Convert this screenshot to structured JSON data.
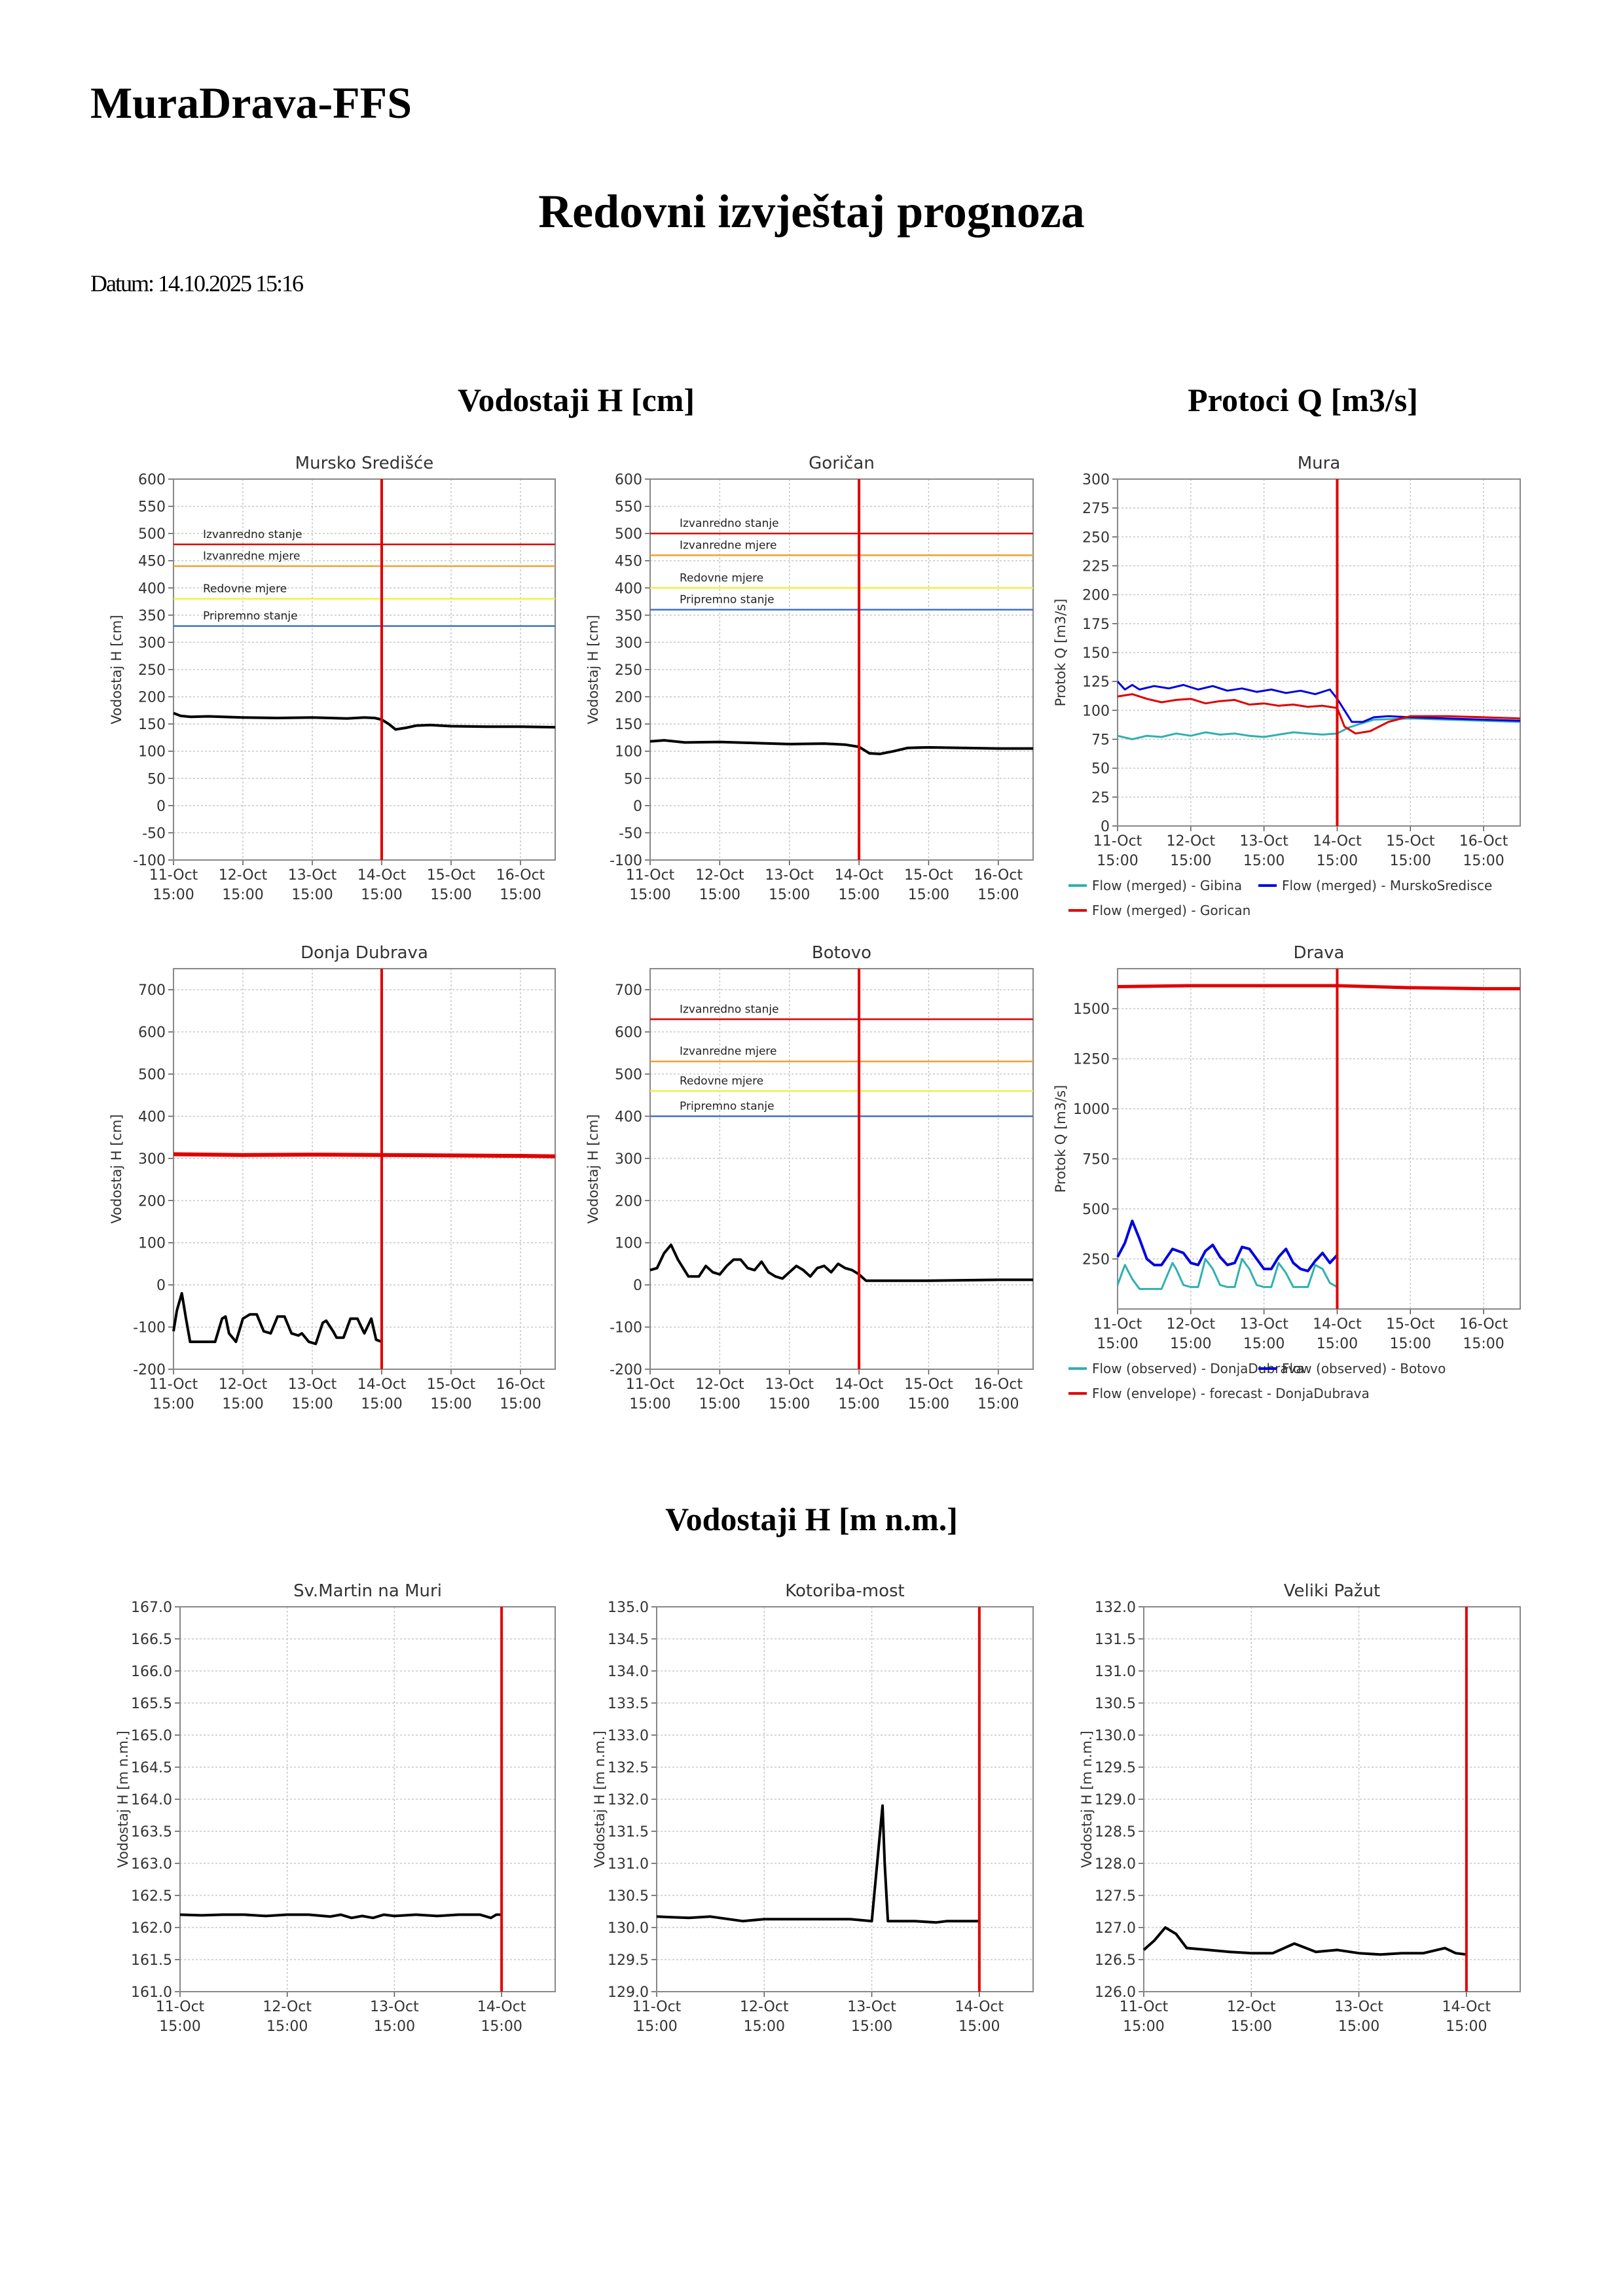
{
  "app_title": "MuraDrava-FFS",
  "report_title": "Redovni izvještaj prognoza",
  "report_date": "Datum: 14.10.2025 15:16",
  "section_titles": {
    "water_levels_cm": "Vodostaji H [cm]",
    "flows": "Protoci Q [m3/s]",
    "water_levels_mnm": "Vodostaji H [m n.m.]"
  },
  "colors": {
    "observed": "#000000",
    "now_line": "#e00000",
    "izvanredno_stanje": "#e00000",
    "izvanredne_mjere": "#f0a030",
    "redovne_mjere": "#f0f040",
    "pripremno_stanje": "#4070c0",
    "flow_teal": "#30b0b0",
    "flow_blue": "#0000e0",
    "flow_red": "#e00000"
  },
  "chart_data": [
    {
      "id": "mursko-sredisce",
      "type": "line",
      "title": "Mursko Središće",
      "ylabel": "Vodostaj H [cm]",
      "ylim": [
        -100,
        600
      ],
      "ytick_step": 50,
      "ytick_decimals": 0,
      "xlabels": [
        "11-Oct\n15:00",
        "12-Oct\n15:00",
        "13-Oct\n15:00",
        "14-Oct\n15:00",
        "15-Oct\n15:00",
        "16-Oct\n15:00"
      ],
      "xlim": [
        0,
        5.5
      ],
      "now": 3,
      "thresholds": [
        {
          "label": "Izvanredno stanje",
          "value": 480,
          "color": "#e00000"
        },
        {
          "label": "Izvanredne mjere",
          "value": 440,
          "color": "#f0a030"
        },
        {
          "label": "Redovne mjere",
          "value": 380,
          "color": "#f0f040"
        },
        {
          "label": "Pripremno stanje",
          "value": 330,
          "color": "#4070c0"
        }
      ],
      "series": [
        {
          "color": "#000000",
          "width": 4,
          "x": [
            0,
            0.1,
            0.25,
            0.5,
            1,
            1.5,
            2,
            2.5,
            2.75,
            2.9,
            3,
            3.1,
            3.2,
            3.35,
            3.5,
            3.7,
            4,
            4.5,
            5,
            5.5
          ],
          "y": [
            170,
            165,
            163,
            164,
            162,
            161,
            162,
            160,
            162,
            161,
            158,
            150,
            140,
            143,
            147,
            148,
            146,
            145,
            145,
            144
          ]
        }
      ]
    },
    {
      "id": "gorican",
      "type": "line",
      "title": "Goričan",
      "ylabel": "Vodostaj H [cm]",
      "ylim": [
        -100,
        600
      ],
      "ytick_step": 50,
      "ytick_decimals": 0,
      "xlabels": [
        "11-Oct\n15:00",
        "12-Oct\n15:00",
        "13-Oct\n15:00",
        "14-Oct\n15:00",
        "15-Oct\n15:00",
        "16-Oct\n15:00"
      ],
      "xlim": [
        0,
        5.5
      ],
      "now": 3,
      "thresholds": [
        {
          "label": "Izvanredno stanje",
          "value": 500,
          "color": "#e00000"
        },
        {
          "label": "Izvanredne mjere",
          "value": 460,
          "color": "#f0a030"
        },
        {
          "label": "Redovne mjere",
          "value": 400,
          "color": "#f0f040"
        },
        {
          "label": "Pripremno stanje",
          "value": 360,
          "color": "#4070c0"
        }
      ],
      "series": [
        {
          "color": "#000000",
          "width": 4,
          "x": [
            0,
            0.2,
            0.5,
            1,
            1.5,
            2,
            2.5,
            2.8,
            3,
            3.15,
            3.3,
            3.5,
            3.7,
            4,
            4.5,
            5,
            5.5
          ],
          "y": [
            118,
            120,
            116,
            117,
            115,
            113,
            114,
            112,
            108,
            96,
            95,
            100,
            106,
            107,
            106,
            105,
            105
          ]
        }
      ]
    },
    {
      "id": "mura-flow",
      "type": "line",
      "title": "Mura",
      "ylabel": "Protok Q [m3/s]",
      "ylim": [
        0,
        300
      ],
      "ytick_step": 25,
      "ytick_decimals": 0,
      "xlabels": [
        "11-Oct\n15:00",
        "12-Oct\n15:00",
        "13-Oct\n15:00",
        "14-Oct\n15:00",
        "15-Oct\n15:00",
        "16-Oct\n15:00"
      ],
      "xlim": [
        0,
        5.5
      ],
      "now": 3,
      "legend": [
        {
          "label": "Flow (merged) - Gibina",
          "color": "#30b0b0"
        },
        {
          "label": "Flow (merged) - MurskoSredisce",
          "color": "#0000e0"
        },
        {
          "label": "Flow (merged) - Gorican",
          "color": "#e00000"
        }
      ],
      "series": [
        {
          "name": "Flow (merged) - Gibina",
          "color": "#30b0b0",
          "width": 3,
          "x": [
            0,
            0.2,
            0.4,
            0.6,
            0.8,
            1,
            1.2,
            1.4,
            1.6,
            1.8,
            2,
            2.2,
            2.4,
            2.6,
            2.8,
            3,
            3.15,
            3.3,
            3.5,
            4,
            4.5,
            5,
            5.5
          ],
          "y": [
            78,
            75,
            78,
            77,
            80,
            78,
            81,
            79,
            80,
            78,
            77,
            79,
            81,
            80,
            79,
            80,
            85,
            88,
            92,
            93,
            92,
            91,
            90
          ]
        },
        {
          "name": "Flow (merged) - MurskoSredisce",
          "color": "#0000e0",
          "width": 3,
          "x": [
            0,
            0.1,
            0.2,
            0.3,
            0.5,
            0.7,
            0.9,
            1.1,
            1.3,
            1.5,
            1.7,
            1.9,
            2.1,
            2.3,
            2.5,
            2.7,
            2.9,
            3,
            3.1,
            3.2,
            3.35,
            3.5,
            3.7,
            4,
            4.5,
            5,
            5.5
          ],
          "y": [
            125,
            118,
            122,
            118,
            121,
            119,
            122,
            118,
            121,
            117,
            119,
            116,
            118,
            115,
            117,
            114,
            118,
            110,
            100,
            90,
            90,
            94,
            95,
            94,
            93,
            92,
            91
          ]
        },
        {
          "name": "Flow (merged) - Gorican",
          "color": "#e00000",
          "width": 3,
          "x": [
            0,
            0.2,
            0.4,
            0.6,
            0.8,
            1,
            1.2,
            1.4,
            1.6,
            1.8,
            2,
            2.2,
            2.4,
            2.6,
            2.8,
            3,
            3.1,
            3.25,
            3.45,
            3.7,
            4,
            4.5,
            5,
            5.5
          ],
          "y": [
            112,
            114,
            110,
            107,
            109,
            110,
            106,
            108,
            109,
            105,
            106,
            104,
            105,
            103,
            104,
            102,
            86,
            80,
            82,
            90,
            95,
            95,
            94,
            93
          ]
        }
      ]
    },
    {
      "id": "donja-dubrava",
      "type": "line",
      "title": "Donja Dubrava",
      "ylabel": "Vodostaj H [cm]",
      "ylim": [
        -200,
        750
      ],
      "ytick_step": 100,
      "ytick_decimals": 0,
      "xlabels": [
        "11-Oct\n15:00",
        "12-Oct\n15:00",
        "13-Oct\n15:00",
        "14-Oct\n15:00",
        "15-Oct\n15:00",
        "16-Oct\n15:00"
      ],
      "xlim": [
        0,
        5.5
      ],
      "now": 3,
      "series": [
        {
          "color": "#e00000",
          "width": 6,
          "x": [
            0,
            1,
            2,
            3,
            4,
            5,
            5.5
          ],
          "y": [
            310,
            308,
            309,
            308,
            307,
            306,
            305
          ]
        },
        {
          "color": "#000000",
          "width": 4,
          "x": [
            0,
            0.05,
            0.12,
            0.18,
            0.24,
            0.32,
            0.45,
            0.6,
            0.7,
            0.75,
            0.8,
            0.9,
            1.0,
            1.1,
            1.2,
            1.3,
            1.4,
            1.5,
            1.6,
            1.7,
            1.8,
            1.85,
            1.95,
            2.05,
            2.15,
            2.2,
            2.3,
            2.35,
            2.45,
            2.55,
            2.65,
            2.75,
            2.85,
            2.92,
            3.0
          ],
          "y": [
            -110,
            -60,
            -20,
            -80,
            -135,
            -135,
            -135,
            -135,
            -80,
            -75,
            -115,
            -135,
            -80,
            -70,
            -70,
            -110,
            -115,
            -75,
            -75,
            -115,
            -120,
            -115,
            -135,
            -140,
            -90,
            -85,
            -110,
            -125,
            -125,
            -80,
            -80,
            -115,
            -80,
            -130,
            -135
          ]
        }
      ]
    },
    {
      "id": "botovo",
      "type": "line",
      "title": "Botovo",
      "ylabel": "Vodostaj H [cm]",
      "ylim": [
        -200,
        750
      ],
      "ytick_step": 100,
      "ytick_decimals": 0,
      "xlabels": [
        "11-Oct\n15:00",
        "12-Oct\n15:00",
        "13-Oct\n15:00",
        "14-Oct\n15:00",
        "15-Oct\n15:00",
        "16-Oct\n15:00"
      ],
      "xlim": [
        0,
        5.5
      ],
      "now": 3,
      "thresholds": [
        {
          "label": "Izvanredno stanje",
          "value": 630,
          "color": "#e00000"
        },
        {
          "label": "Izvanredne mjere",
          "value": 530,
          "color": "#f0a030"
        },
        {
          "label": "Redovne mjere",
          "value": 460,
          "color": "#f0f040"
        },
        {
          "label": "Pripremno stanje",
          "value": 400,
          "color": "#4070c0"
        }
      ],
      "series": [
        {
          "color": "#000000",
          "width": 4,
          "x": [
            0,
            0.1,
            0.2,
            0.3,
            0.4,
            0.55,
            0.7,
            0.8,
            0.9,
            1.0,
            1.1,
            1.2,
            1.3,
            1.4,
            1.5,
            1.6,
            1.7,
            1.8,
            1.9,
            2.0,
            2.1,
            2.2,
            2.3,
            2.4,
            2.5,
            2.6,
            2.7,
            2.8,
            2.9,
            3.0,
            3.1,
            3.3,
            4,
            5,
            5.5
          ],
          "y": [
            35,
            40,
            75,
            95,
            60,
            20,
            20,
            45,
            30,
            25,
            45,
            60,
            60,
            40,
            35,
            55,
            30,
            20,
            15,
            30,
            45,
            35,
            20,
            40,
            45,
            30,
            50,
            40,
            35,
            25,
            10,
            10,
            10,
            12,
            12
          ]
        }
      ]
    },
    {
      "id": "drava-flow",
      "type": "line",
      "title": "Drava",
      "ylabel": "Protok Q [m3/s]",
      "ylim": [
        0,
        1700
      ],
      "ytick_step": 250,
      "ytick_decimals": 0,
      "ytick_min": 250,
      "xlabels": [
        "11-Oct\n15:00",
        "12-Oct\n15:00",
        "13-Oct\n15:00",
        "14-Oct\n15:00",
        "15-Oct\n15:00",
        "16-Oct\n15:00"
      ],
      "xlim": [
        0,
        5.5
      ],
      "now": 3,
      "legend": [
        {
          "label": "Flow (observed) - DonjaDubrava",
          "color": "#30b0b0"
        },
        {
          "label": "Flow (observed) - Botovo",
          "color": "#0000e0"
        },
        {
          "label": "Flow (envelope) - forecast - DonjaDubrava",
          "color": "#e00000"
        }
      ],
      "series": [
        {
          "name": "Flow (envelope) - forecast - DonjaDubrava",
          "color": "#e00000",
          "width": 5,
          "x": [
            0,
            1,
            2,
            3,
            4,
            5,
            5.5
          ],
          "y": [
            1610,
            1615,
            1615,
            1615,
            1605,
            1600,
            1600
          ]
        },
        {
          "name": "Flow (observed) - DonjaDubrava",
          "color": "#30b0b0",
          "width": 3,
          "x": [
            0,
            0.1,
            0.2,
            0.3,
            0.4,
            0.5,
            0.6,
            0.75,
            0.8,
            0.9,
            1.0,
            1.1,
            1.2,
            1.3,
            1.4,
            1.5,
            1.6,
            1.7,
            1.8,
            1.9,
            2.0,
            2.1,
            2.2,
            2.3,
            2.4,
            2.5,
            2.6,
            2.7,
            2.8,
            2.9,
            3.0
          ],
          "y": [
            120,
            220,
            150,
            100,
            100,
            100,
            100,
            230,
            200,
            120,
            110,
            110,
            250,
            200,
            120,
            110,
            110,
            250,
            200,
            120,
            110,
            110,
            230,
            180,
            110,
            110,
            110,
            220,
            200,
            130,
            110
          ]
        },
        {
          "name": "Flow (observed) - Botovo",
          "color": "#0000e0",
          "width": 4,
          "x": [
            0,
            0.1,
            0.2,
            0.3,
            0.4,
            0.5,
            0.6,
            0.75,
            0.9,
            1.0,
            1.1,
            1.2,
            1.3,
            1.4,
            1.5,
            1.6,
            1.7,
            1.8,
            1.9,
            2.0,
            2.1,
            2.2,
            2.3,
            2.4,
            2.5,
            2.6,
            2.7,
            2.8,
            2.9,
            3.0
          ],
          "y": [
            260,
            330,
            440,
            350,
            250,
            220,
            220,
            300,
            280,
            230,
            220,
            290,
            320,
            260,
            220,
            230,
            310,
            300,
            250,
            200,
            200,
            260,
            300,
            230,
            200,
            190,
            240,
            280,
            230,
            270
          ]
        }
      ]
    },
    {
      "id": "sv-martin",
      "type": "line",
      "title": "Sv.Martin na Muri",
      "ylabel": "Vodostaj H [m n.m.]",
      "ylim": [
        161.0,
        167.0
      ],
      "ytick_step": 0.5,
      "ytick_decimals": 1,
      "xlabels": [
        "11-Oct\n15:00",
        "12-Oct\n15:00",
        "13-Oct\n15:00",
        "14-Oct\n15:00"
      ],
      "xlim": [
        0,
        3.5
      ],
      "now": 3,
      "series": [
        {
          "color": "#000000",
          "width": 4,
          "x": [
            0,
            0.2,
            0.4,
            0.6,
            0.8,
            1.0,
            1.2,
            1.4,
            1.5,
            1.6,
            1.7,
            1.8,
            1.9,
            2.0,
            2.2,
            2.4,
            2.6,
            2.8,
            2.9,
            2.95,
            3.0
          ],
          "y": [
            162.2,
            162.19,
            162.2,
            162.2,
            162.18,
            162.2,
            162.2,
            162.17,
            162.2,
            162.15,
            162.18,
            162.15,
            162.2,
            162.18,
            162.2,
            162.18,
            162.2,
            162.2,
            162.15,
            162.2,
            162.2
          ]
        }
      ]
    },
    {
      "id": "kotoriba-most",
      "type": "line",
      "title": "Kotoriba-most",
      "ylabel": "Vodostaj H [m n.m.]",
      "ylim": [
        129.0,
        135.0
      ],
      "ytick_step": 0.5,
      "ytick_decimals": 1,
      "xlabels": [
        "11-Oct\n15:00",
        "12-Oct\n15:00",
        "13-Oct\n15:00",
        "14-Oct\n15:00"
      ],
      "xlim": [
        0,
        3.5
      ],
      "now": 3,
      "series": [
        {
          "color": "#000000",
          "width": 4,
          "x": [
            0,
            0.3,
            0.5,
            0.8,
            1.0,
            1.2,
            1.5,
            1.8,
            2.0,
            2.05,
            2.1,
            2.12,
            2.15,
            2.2,
            2.4,
            2.6,
            2.7,
            2.8,
            3.0
          ],
          "y": [
            130.17,
            130.15,
            130.17,
            130.1,
            130.13,
            130.13,
            130.13,
            130.13,
            130.1,
            131.0,
            131.9,
            131.0,
            130.1,
            130.1,
            130.1,
            130.08,
            130.1,
            130.1,
            130.1
          ]
        }
      ]
    },
    {
      "id": "veliki-pazut",
      "type": "line",
      "title": "Veliki Pažut",
      "ylabel": "Vodostaj H [m n.m.]",
      "ylim": [
        126.0,
        132.0
      ],
      "ytick_step": 0.5,
      "ytick_decimals": 1,
      "xlabels": [
        "11-Oct\n15:00",
        "12-Oct\n15:00",
        "13-Oct\n15:00",
        "14-Oct\n15:00"
      ],
      "xlim": [
        0,
        3.5
      ],
      "now": 3,
      "series": [
        {
          "color": "#000000",
          "width": 4,
          "x": [
            0,
            0.1,
            0.2,
            0.3,
            0.4,
            0.6,
            0.8,
            1.0,
            1.2,
            1.4,
            1.6,
            1.8,
            2.0,
            2.2,
            2.4,
            2.6,
            2.8,
            2.9,
            3.0
          ],
          "y": [
            126.65,
            126.8,
            127.0,
            126.9,
            126.68,
            126.65,
            126.62,
            126.6,
            126.6,
            126.75,
            126.62,
            126.65,
            126.6,
            126.58,
            126.6,
            126.6,
            126.68,
            126.6,
            126.58
          ]
        }
      ]
    }
  ]
}
